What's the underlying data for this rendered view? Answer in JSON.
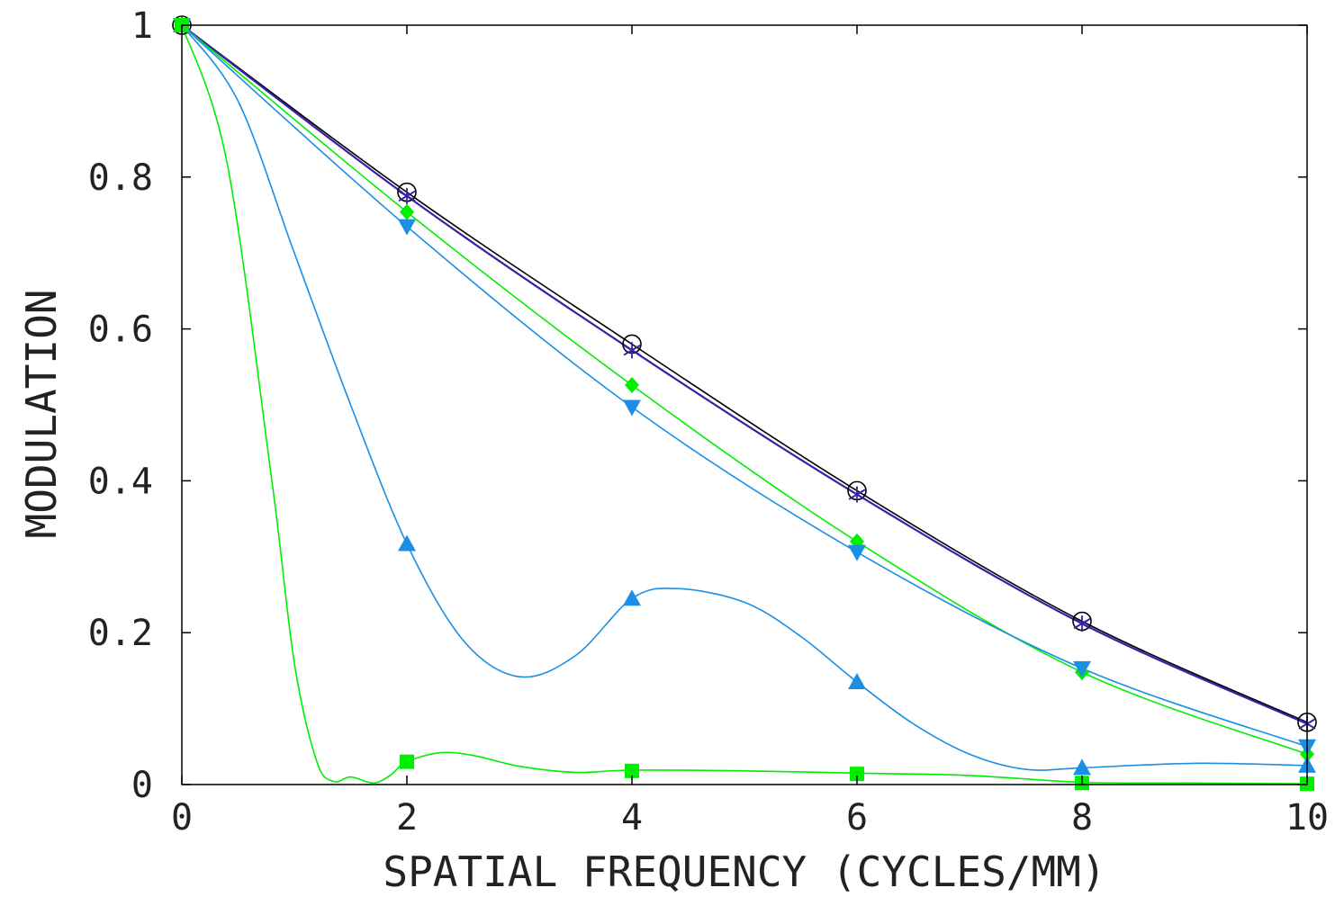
{
  "chart_data": {
    "type": "line",
    "xlabel": "SPATIAL FREQUENCY (CYCLES/MM)",
    "ylabel": "MODULATION",
    "xlim": [
      0,
      10
    ],
    "ylim": [
      0,
      1
    ],
    "xticks": [
      "0",
      "2",
      "4",
      "6",
      "8",
      "10"
    ],
    "yticks": [
      "0",
      "0.2",
      "0.4",
      "0.6",
      "0.8",
      "1"
    ],
    "xtick_values": [
      0,
      2,
      4,
      6,
      8,
      10
    ],
    "ytick_values": [
      0,
      0.2,
      0.4,
      0.6,
      0.8,
      1
    ],
    "grid": false,
    "series": [
      {
        "color": "#000000",
        "marker": "circle",
        "x": [
          0,
          2,
          4,
          6,
          8,
          10
        ],
        "y": [
          1.0,
          0.78,
          0.58,
          0.387,
          0.215,
          0.082
        ]
      },
      {
        "color": "#3a1fa8",
        "marker": "asterisk",
        "x": [
          0,
          2,
          4,
          6,
          8,
          10
        ],
        "y": [
          1.0,
          0.775,
          0.572,
          0.382,
          0.212,
          0.08
        ]
      },
      {
        "color": "#00ee00",
        "marker": "diamond",
        "x": [
          0,
          2,
          4,
          6,
          8,
          10
        ],
        "y": [
          1.0,
          0.754,
          0.526,
          0.32,
          0.148,
          0.04
        ]
      },
      {
        "color": "#1a8fe3",
        "marker": "triangle-down",
        "x": [
          0,
          2,
          4,
          6,
          8,
          10
        ],
        "y": [
          1.0,
          0.735,
          0.497,
          0.306,
          0.153,
          0.05
        ]
      },
      {
        "color": "#1a8fe3",
        "marker": "triangle-up",
        "x": [
          0,
          2,
          4,
          6,
          8,
          10
        ],
        "y": [
          1.0,
          0.317,
          0.245,
          0.135,
          0.022,
          0.025
        ],
        "curve_x": [
          0,
          0.5,
          1,
          1.5,
          2,
          2.5,
          3,
          3.5,
          4,
          4.4,
          5,
          5.5,
          6,
          6.5,
          7,
          7.5,
          8,
          9,
          10
        ],
        "curve_y": [
          1.0,
          0.9,
          0.7,
          0.5,
          0.317,
          0.19,
          0.142,
          0.17,
          0.245,
          0.258,
          0.24,
          0.195,
          0.135,
          0.08,
          0.04,
          0.02,
          0.022,
          0.028,
          0.025
        ]
      },
      {
        "color": "#00ee00",
        "marker": "square",
        "x": [
          0,
          2,
          4,
          6,
          8,
          10
        ],
        "y": [
          1.0,
          0.03,
          0.018,
          0.014,
          0.002,
          0.001
        ],
        "curve_x": [
          0,
          0.4,
          0.8,
          1.0,
          1.2,
          1.35,
          1.5,
          1.7,
          1.85,
          2.0,
          2.3,
          2.6,
          3.0,
          3.5,
          4.0,
          5,
          6,
          7,
          8,
          9,
          10
        ],
        "curve_y": [
          1.0,
          0.82,
          0.4,
          0.16,
          0.03,
          0.004,
          0.01,
          0.002,
          0.012,
          0.03,
          0.042,
          0.038,
          0.024,
          0.016,
          0.019,
          0.018,
          0.015,
          0.012,
          0.003,
          0.002,
          0.001
        ]
      }
    ]
  }
}
